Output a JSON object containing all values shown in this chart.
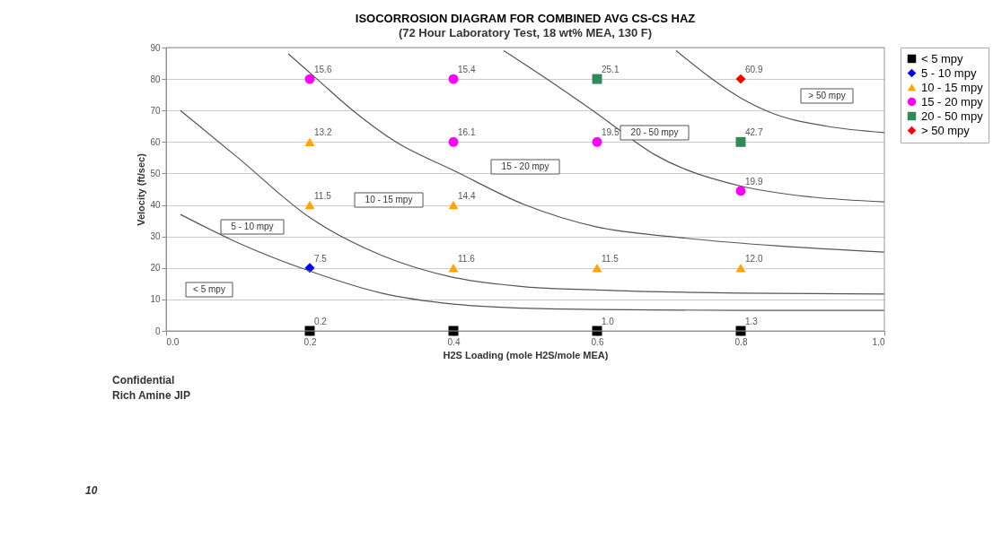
{
  "chart_data": {
    "type": "scatter",
    "title": "ISOCORROSION DIAGRAM FOR COMBINED AVG CS-CS HAZ",
    "subtitle": "(72 Hour Laboratory Test, 18 wt% MEA, 130 F)",
    "xlabel": "H2S Loading (mole H2S/mole MEA)",
    "ylabel": "Velocity (ft/sec)",
    "xlim": [
      0,
      1
    ],
    "ylim": [
      0,
      90
    ],
    "xticks": [
      {
        "value": 0,
        "label": "0.0"
      },
      {
        "value": 0.2,
        "label": "0.2"
      },
      {
        "value": 0.4,
        "label": "0.4"
      },
      {
        "value": 0.6,
        "label": "0.6"
      },
      {
        "value": 0.8,
        "label": "0.8"
      },
      {
        "value": 1,
        "label": "1.0"
      }
    ],
    "yticks": [
      0,
      10,
      20,
      30,
      40,
      50,
      60,
      70,
      80,
      90
    ],
    "grid": "y",
    "legend": "right",
    "series": [
      {
        "name": "< 5 mpy",
        "color": "#000000",
        "marker": "square",
        "x": [
          0.2,
          0.4,
          0.6,
          0.8
        ],
        "values": [
          0,
          0,
          0,
          0
        ]
      },
      {
        "name": "5 - 10 mpy",
        "color": "#0000ff",
        "marker": "diamond",
        "x": [
          0.2
        ],
        "values": [
          20
        ]
      },
      {
        "name": "10 - 15 mpy",
        "color": "#ffa500",
        "marker": "triangle",
        "x": [
          0.2,
          0.2,
          0.4,
          0.4,
          0.6,
          0.8
        ],
        "values": [
          40,
          60,
          20,
          40,
          20,
          20
        ]
      },
      {
        "name": "15 - 20 mpy",
        "color": "#ff00ff",
        "marker": "circle",
        "x": [
          0.2,
          0.4,
          0.4,
          0.6,
          0.8
        ],
        "values": [
          80,
          60,
          80,
          60,
          44.5
        ]
      },
      {
        "name": "20 - 50 mpy",
        "color": "#2e8b57",
        "marker": "square",
        "x": [
          0.6,
          0.8
        ],
        "values": [
          80,
          60
        ]
      },
      {
        "name": "> 50 mpy",
        "color": "#ff0000",
        "marker": "diamond",
        "x": [
          0.8
        ],
        "values": [
          80
        ]
      },
      {
        "type": "line",
        "color": "#555555",
        "x": [
          0.02,
          0.1,
          0.2,
          0.3,
          0.4,
          0.5,
          0.6,
          0.8,
          1.0
        ],
        "values": [
          37,
          28,
          19,
          12,
          8.5,
          7.2,
          6.8,
          6.5,
          6.5
        ]
      },
      {
        "type": "line",
        "color": "#555555",
        "x": [
          0.02,
          0.1,
          0.2,
          0.3,
          0.4,
          0.5,
          0.6,
          0.8,
          1.0
        ],
        "values": [
          70,
          55,
          36,
          24,
          17,
          14,
          13,
          12,
          11.7
        ]
      },
      {
        "type": "line",
        "color": "#555555",
        "x": [
          0.17,
          0.21,
          0.26,
          0.32,
          0.4,
          0.5,
          0.6,
          0.7,
          0.85,
          1.0
        ],
        "values": [
          88,
          80,
          70,
          60,
          51,
          40,
          33,
          30,
          27,
          25
        ]
      },
      {
        "type": "line",
        "color": "#555555",
        "x": [
          0.47,
          0.53,
          0.6,
          0.68,
          0.8,
          0.9,
          1.0
        ],
        "values": [
          89,
          80,
          69,
          56,
          46,
          42.5,
          41
        ]
      },
      {
        "type": "line",
        "color": "#555555",
        "x": [
          0.71,
          0.8,
          0.84,
          0.92,
          1.0
        ],
        "values": [
          89,
          74,
          69.5,
          65,
          63
        ]
      }
    ],
    "annotations": [
      {
        "text": "0.2",
        "x": 0.2,
        "y": 0
      },
      {
        "text": "1.0",
        "x": 0.6,
        "y": 0
      },
      {
        "text": "1.3",
        "x": 0.8,
        "y": 0
      },
      {
        "text": "7.5",
        "x": 0.2,
        "y": 20
      },
      {
        "text": "11.5",
        "x": 0.2,
        "y": 40
      },
      {
        "text": "13.2",
        "x": 0.2,
        "y": 60
      },
      {
        "text": "11.6",
        "x": 0.4,
        "y": 20
      },
      {
        "text": "14.4",
        "x": 0.4,
        "y": 40
      },
      {
        "text": "11.5",
        "x": 0.6,
        "y": 20
      },
      {
        "text": "12.0",
        "x": 0.8,
        "y": 20
      },
      {
        "text": "15.6",
        "x": 0.2,
        "y": 80
      },
      {
        "text": "16.1",
        "x": 0.4,
        "y": 60
      },
      {
        "text": "15.4",
        "x": 0.4,
        "y": 80
      },
      {
        "text": "19.5",
        "x": 0.6,
        "y": 60
      },
      {
        "text": "19.9",
        "x": 0.8,
        "y": 44.5
      },
      {
        "text": "25.1",
        "x": 0.6,
        "y": 80
      },
      {
        "text": "42.7",
        "x": 0.8,
        "y": 60
      },
      {
        "text": "60.9",
        "x": 0.8,
        "y": 80
      },
      "< 5 mpy",
      "5 - 10 mpy",
      "10 - 15 mpy",
      "15 - 20 mpy",
      "20 - 50 mpy",
      "> 50 mpy",
      "Confidential",
      "Rich Amine JIP",
      "10"
    ]
  }
}
